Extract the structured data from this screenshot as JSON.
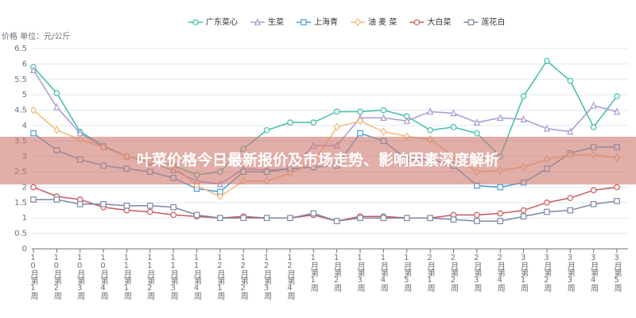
{
  "chart_data": {
    "type": "line",
    "y_label": "价格 单位：元/公斤",
    "categories": [
      "10月第1周",
      "10月第2周",
      "10月第3周",
      "10月第4周",
      "11月第1周",
      "11月第2周",
      "11月第3周",
      "11月第4周",
      "12月第1周",
      "12月第2周",
      "12月第3周",
      "12月第4周",
      "1月第1周",
      "1月第2周",
      "1月第3周",
      "1月第4周",
      "1月第5周",
      "2月第1周",
      "2月第2周",
      "2月第3周",
      "2月第4周",
      "3月第1周",
      "3月第2周",
      "3月第3周",
      "3月第4周",
      "3月第5周"
    ],
    "series": [
      {
        "name": "广东菜心",
        "color": "#3fbfa8",
        "marker": "circle",
        "values": [
          5.9,
          5.05,
          3.8,
          3.35,
          3.0,
          2.85,
          2.7,
          2.4,
          2.5,
          3.25,
          3.85,
          4.1,
          4.1,
          4.45,
          4.45,
          4.5,
          4.3,
          3.85,
          3.95,
          3.75,
          3.0,
          4.95,
          6.1,
          5.45,
          3.95,
          4.95
        ]
      },
      {
        "name": "生菜",
        "color": "#a99ad4",
        "marker": "triangle",
        "values": [
          5.8,
          4.6,
          3.75,
          3.3,
          3.0,
          2.8,
          2.55,
          2.2,
          2.1,
          2.6,
          2.55,
          2.6,
          3.35,
          3.35,
          4.25,
          4.25,
          4.15,
          4.45,
          4.4,
          4.1,
          4.25,
          4.2,
          3.9,
          3.8,
          4.65,
          4.45
        ]
      },
      {
        "name": "上海青",
        "color": "#4a9fd8",
        "marker": "square",
        "values": [
          3.75,
          3.2,
          2.9,
          2.7,
          2.6,
          2.5,
          2.3,
          1.95,
          1.85,
          2.5,
          2.5,
          2.6,
          2.65,
          2.7,
          3.75,
          3.5,
          2.9,
          2.9,
          2.7,
          2.05,
          2.0,
          2.15,
          2.6,
          3.1,
          3.3,
          3.3
        ]
      },
      {
        "name": "油 麦 菜",
        "color": "#f5b97a",
        "marker": "diamond",
        "values": [
          4.5,
          3.85,
          3.55,
          3.3,
          3.0,
          2.85,
          2.7,
          2.05,
          1.7,
          2.2,
          2.2,
          2.45,
          2.8,
          3.95,
          4.15,
          3.8,
          3.65,
          3.55,
          3.0,
          2.5,
          2.55,
          2.65,
          2.9,
          3.05,
          3.05,
          2.95
        ]
      },
      {
        "name": "大白菜",
        "color": "#c85a5a",
        "marker": "circle",
        "values": [
          2.0,
          1.7,
          1.6,
          1.35,
          1.25,
          1.2,
          1.1,
          1.05,
          1.0,
          1.05,
          1.0,
          1.0,
          1.1,
          0.9,
          1.05,
          1.05,
          1.0,
          1.0,
          1.1,
          1.1,
          1.15,
          1.25,
          1.5,
          1.65,
          1.9,
          2.0
        ]
      },
      {
        "name": "莲花白",
        "color": "#7d87a6",
        "marker": "square",
        "values": [
          1.6,
          1.6,
          1.45,
          1.45,
          1.4,
          1.4,
          1.35,
          1.1,
          1.0,
          1.0,
          1.0,
          1.0,
          1.15,
          0.9,
          1.0,
          1.0,
          1.0,
          1.0,
          0.95,
          0.9,
          0.9,
          1.05,
          1.2,
          1.25,
          1.45,
          1.55
        ]
      }
    ],
    "ylim": [
      0,
      6.5
    ],
    "yticks": [
      0,
      0.5,
      1,
      1.5,
      2,
      2.5,
      3,
      3.5,
      4,
      4.5,
      5,
      5.5,
      6,
      6.5
    ],
    "grid": true
  },
  "banner": {
    "title": "叶菜价格今日最新报价及市场走势、影响因素深度解析"
  }
}
